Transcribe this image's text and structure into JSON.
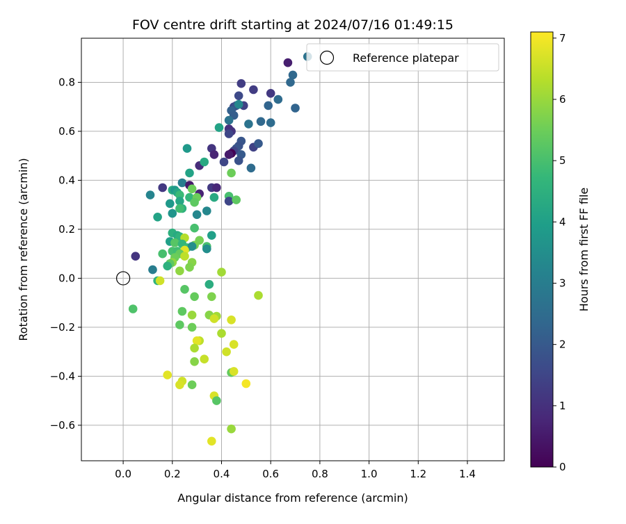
{
  "chart_data": {
    "type": "scatter",
    "title": "FOV centre drift starting at 2024/07/16 01:49:15",
    "xlabel": "Angular distance from reference (arcmin)",
    "ylabel": "Rotation from reference (arcmin)",
    "xlim": [
      -0.17,
      1.55
    ],
    "ylim": [
      -0.745,
      0.98
    ],
    "xticks": [
      0.0,
      0.2,
      0.4,
      0.6,
      0.8,
      1.0,
      1.2,
      1.4
    ],
    "xtick_labels": [
      "0.0",
      "0.2",
      "0.4",
      "0.6",
      "0.8",
      "1.0",
      "1.2",
      "1.4"
    ],
    "yticks": [
      -0.6,
      -0.4,
      -0.2,
      0.0,
      0.2,
      0.4,
      0.6,
      0.8
    ],
    "ytick_labels": [
      "−0.6",
      "−0.4",
      "−0.2",
      "0.0",
      "0.2",
      "0.4",
      "0.6",
      "0.8"
    ],
    "grid": true,
    "legend": {
      "position": "top-right",
      "label": "Reference platepar"
    },
    "reference_point": {
      "x": 0.0,
      "y": 0.0
    },
    "colorbar": {
      "label": "Hours from first FF file",
      "range": [
        0,
        7.1
      ],
      "ticks": [
        0,
        1,
        2,
        3,
        4,
        5,
        6,
        7
      ],
      "tick_labels": [
        "0",
        "1",
        "2",
        "3",
        "4",
        "5",
        "6",
        "7"
      ],
      "colormap": "viridis"
    },
    "points": [
      [
        0.67,
        0.88,
        0.6
      ],
      [
        0.75,
        0.905,
        2.7
      ],
      [
        0.69,
        0.83,
        2.4
      ],
      [
        0.68,
        0.8,
        2.4
      ],
      [
        0.7,
        0.695,
        2.3
      ],
      [
        0.48,
        0.795,
        1.3
      ],
      [
        0.53,
        0.77,
        1.3
      ],
      [
        0.6,
        0.755,
        1.2
      ],
      [
        0.63,
        0.73,
        2.5
      ],
      [
        0.59,
        0.705,
        2.3
      ],
      [
        0.47,
        0.745,
        1.6
      ],
      [
        0.45,
        0.7,
        1.5
      ],
      [
        0.46,
        0.705,
        1.8
      ],
      [
        0.49,
        0.705,
        1.4
      ],
      [
        0.47,
        0.71,
        3.3
      ],
      [
        0.44,
        0.685,
        2.2
      ],
      [
        0.45,
        0.665,
        2.1
      ],
      [
        0.43,
        0.645,
        2.7
      ],
      [
        0.39,
        0.615,
        4.1
      ],
      [
        0.44,
        0.6,
        1.1
      ],
      [
        0.43,
        0.61,
        1.0
      ],
      [
        0.43,
        0.59,
        1.5
      ],
      [
        0.51,
        0.63,
        2.7
      ],
      [
        0.56,
        0.64,
        2.4
      ],
      [
        0.6,
        0.635,
        2.5
      ],
      [
        0.48,
        0.56,
        1.9
      ],
      [
        0.47,
        0.54,
        1.8
      ],
      [
        0.46,
        0.53,
        1.9
      ],
      [
        0.53,
        0.535,
        1.4
      ],
      [
        0.55,
        0.55,
        2.0
      ],
      [
        0.45,
        0.52,
        1.5
      ],
      [
        0.48,
        0.505,
        2.0
      ],
      [
        0.47,
        0.48,
        1.8
      ],
      [
        0.44,
        0.51,
        0.0
      ],
      [
        0.43,
        0.505,
        0.5
      ],
      [
        0.36,
        0.53,
        1.1
      ],
      [
        0.37,
        0.505,
        0.7
      ],
      [
        0.41,
        0.475,
        1.5
      ],
      [
        0.52,
        0.45,
        2.5
      ],
      [
        0.26,
        0.53,
        3.8
      ],
      [
        0.31,
        0.46,
        0.9
      ],
      [
        0.33,
        0.475,
        4.3
      ],
      [
        0.44,
        0.43,
        5.5
      ],
      [
        0.27,
        0.43,
        4.1
      ],
      [
        0.24,
        0.39,
        3.0
      ],
      [
        0.27,
        0.38,
        0.5
      ],
      [
        0.28,
        0.365,
        5.5
      ],
      [
        0.31,
        0.345,
        0.7
      ],
      [
        0.36,
        0.37,
        1.2
      ],
      [
        0.38,
        0.37,
        0.8
      ],
      [
        0.16,
        0.37,
        1.2
      ],
      [
        0.2,
        0.36,
        4.4
      ],
      [
        0.21,
        0.36,
        3.8
      ],
      [
        0.22,
        0.35,
        4.2
      ],
      [
        0.23,
        0.34,
        4.8
      ],
      [
        0.11,
        0.34,
        3.2
      ],
      [
        0.19,
        0.305,
        3.8
      ],
      [
        0.23,
        0.315,
        4.2
      ],
      [
        0.27,
        0.33,
        4.7
      ],
      [
        0.3,
        0.33,
        5.5
      ],
      [
        0.29,
        0.31,
        5.3
      ],
      [
        0.37,
        0.33,
        4.3
      ],
      [
        0.43,
        0.335,
        5.0
      ],
      [
        0.43,
        0.315,
        1.5
      ],
      [
        0.46,
        0.32,
        5.3
      ],
      [
        0.24,
        0.285,
        4.5
      ],
      [
        0.23,
        0.285,
        4.9
      ],
      [
        0.2,
        0.265,
        3.7
      ],
      [
        0.14,
        0.25,
        4.1
      ],
      [
        0.34,
        0.275,
        3.3
      ],
      [
        0.3,
        0.26,
        3.3
      ],
      [
        0.29,
        0.205,
        5.0
      ],
      [
        0.2,
        0.185,
        4.5
      ],
      [
        0.22,
        0.175,
        4.3
      ],
      [
        0.23,
        0.17,
        4.6
      ],
      [
        0.25,
        0.165,
        6.3
      ],
      [
        0.19,
        0.15,
        4.0
      ],
      [
        0.21,
        0.145,
        5.2
      ],
      [
        0.24,
        0.14,
        4.7
      ],
      [
        0.26,
        0.125,
        4.8
      ],
      [
        0.29,
        0.135,
        5.6
      ],
      [
        0.28,
        0.13,
        3.5
      ],
      [
        0.31,
        0.155,
        5.6
      ],
      [
        0.34,
        0.13,
        5.0
      ],
      [
        0.34,
        0.12,
        3.5
      ],
      [
        0.36,
        0.175,
        4.0
      ],
      [
        0.2,
        0.11,
        5.0
      ],
      [
        0.22,
        0.11,
        4.9
      ],
      [
        0.25,
        0.115,
        6.8
      ],
      [
        0.23,
        0.1,
        5.4
      ],
      [
        0.16,
        0.1,
        5.0
      ],
      [
        0.21,
        0.085,
        5.5
      ],
      [
        0.25,
        0.09,
        6.4
      ],
      [
        0.28,
        0.065,
        5.8
      ],
      [
        0.27,
        0.045,
        5.7
      ],
      [
        0.2,
        0.065,
        5.9
      ],
      [
        0.19,
        0.06,
        5.3
      ],
      [
        0.18,
        0.05,
        4.5
      ],
      [
        0.23,
        0.03,
        5.9
      ],
      [
        0.05,
        0.09,
        1.1
      ],
      [
        0.12,
        0.035,
        3.0
      ],
      [
        0.14,
        -0.01,
        4.6
      ],
      [
        0.15,
        -0.01,
        6.6
      ],
      [
        0.4,
        0.025,
        6.1
      ],
      [
        0.35,
        -0.025,
        4.4
      ],
      [
        0.25,
        -0.045,
        5.2
      ],
      [
        0.29,
        -0.075,
        5.4
      ],
      [
        0.36,
        -0.075,
        5.7
      ],
      [
        0.55,
        -0.07,
        6.2
      ],
      [
        0.04,
        -0.125,
        5.1
      ],
      [
        0.24,
        -0.135,
        5.3
      ],
      [
        0.28,
        -0.15,
        6.0
      ],
      [
        0.35,
        -0.15,
        5.8
      ],
      [
        0.38,
        -0.155,
        6.1
      ],
      [
        0.37,
        -0.165,
        6.6
      ],
      [
        0.44,
        -0.17,
        6.7
      ],
      [
        0.23,
        -0.19,
        5.3
      ],
      [
        0.28,
        -0.2,
        5.5
      ],
      [
        0.4,
        -0.225,
        6.2
      ],
      [
        0.31,
        -0.255,
        6.4
      ],
      [
        0.3,
        -0.255,
        6.8
      ],
      [
        0.45,
        -0.27,
        6.7
      ],
      [
        0.29,
        -0.285,
        6.2
      ],
      [
        0.42,
        -0.3,
        6.6
      ],
      [
        0.29,
        -0.34,
        5.8
      ],
      [
        0.33,
        -0.33,
        6.5
      ],
      [
        0.44,
        -0.385,
        5.4
      ],
      [
        0.45,
        -0.38,
        6.7
      ],
      [
        0.18,
        -0.395,
        6.8
      ],
      [
        0.24,
        -0.42,
        6.6
      ],
      [
        0.23,
        -0.435,
        6.7
      ],
      [
        0.28,
        -0.435,
        5.5
      ],
      [
        0.5,
        -0.43,
        7.0
      ],
      [
        0.37,
        -0.48,
        6.7
      ],
      [
        0.38,
        -0.5,
        5.2
      ],
      [
        0.44,
        -0.615,
        6.0
      ],
      [
        0.36,
        -0.665,
        6.8
      ]
    ]
  }
}
